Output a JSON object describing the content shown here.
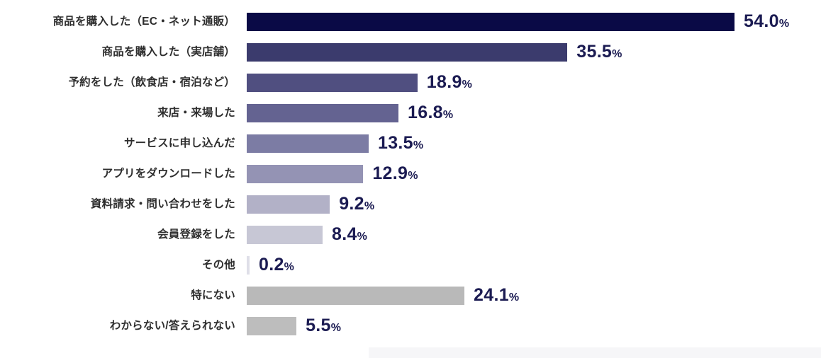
{
  "chart_data": {
    "type": "bar",
    "orientation": "horizontal",
    "title": "",
    "xlabel": "",
    "ylabel": "",
    "unit": "%",
    "grid": false,
    "legend": false,
    "xlim": [
      0,
      54.0
    ],
    "categories": [
      "商品を購入した（EC・ネット通販）",
      "商品を購入した（実店舗）",
      "予約をした（飲食店・宿泊など）",
      "来店・来場した",
      "サービスに申し込んだ",
      "アプリをダウンロードした",
      "資料請求・問い合わせをした",
      "会員登録をした",
      "その他",
      "特にない",
      "わからない/答えられない"
    ],
    "values": [
      54.0,
      35.5,
      18.9,
      16.8,
      13.5,
      12.9,
      9.2,
      8.4,
      0.2,
      24.1,
      5.5
    ],
    "value_labels": [
      "54.0",
      "35.5",
      "18.9",
      "16.8",
      "13.5",
      "12.9",
      "9.2",
      "8.4",
      "0.2",
      "24.1",
      "5.5"
    ],
    "percent_symbol": "%",
    "bar_colors": [
      "#0a0a46",
      "#3b3b6d",
      "#504f80",
      "#646391",
      "#7c7ca4",
      "#9493b4",
      "#b2b1c7",
      "#c7c7d5",
      "#dfdfe8",
      "#b9b9b9",
      "#bdbdbd"
    ],
    "label_text_color": "#2e2e2e",
    "value_text_color": "#1b1b52"
  },
  "misc": {
    "bottom_strip_color": "#f6f6f8"
  }
}
